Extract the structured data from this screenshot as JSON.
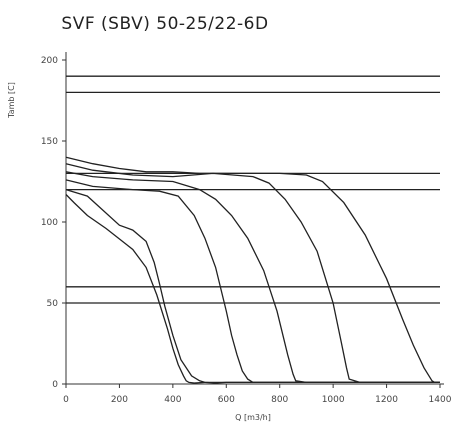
{
  "chart_data": {
    "type": "line",
    "title": "SVF (SBV) 50-25/22-6D",
    "xlabel": "Q [m3/h]",
    "ylabel": "Tamb [C]",
    "xlim": [
      0,
      1400
    ],
    "ylim": [
      0,
      200
    ],
    "xticks": [
      "0",
      "200",
      "400",
      "600",
      "800",
      "1000",
      "1200",
      "1400"
    ],
    "yticks": [
      "0",
      "50",
      "100",
      "150",
      "200"
    ],
    "horizontal_lines": [
      190,
      180,
      130,
      120,
      60,
      50
    ],
    "series": [
      {
        "x": [
          0,
          30,
          80,
          150,
          250,
          300,
          340,
          380,
          400,
          420,
          440,
          450,
          460,
          480,
          520,
          1400
        ],
        "y": [
          117,
          112,
          104,
          96,
          83,
          72,
          55,
          34,
          22,
          12,
          5,
          2,
          1,
          0.6,
          1,
          1
        ]
      },
      {
        "x": [
          0,
          80,
          200,
          250,
          300,
          330,
          350,
          370,
          400,
          430,
          470,
          500,
          520,
          560,
          600,
          1400
        ],
        "y": [
          120,
          116,
          98,
          95,
          88,
          75,
          62,
          48,
          30,
          15,
          5,
          2,
          1,
          0.6,
          1,
          1
        ]
      },
      {
        "x": [
          0,
          100,
          250,
          350,
          420,
          480,
          520,
          560,
          600,
          620,
          640,
          660,
          680,
          700,
          720,
          1400
        ],
        "y": [
          126,
          122,
          120,
          119,
          116,
          104,
          90,
          72,
          45,
          30,
          18,
          8,
          3,
          1,
          1,
          1
        ]
      },
      {
        "x": [
          0,
          100,
          250,
          400,
          500,
          560,
          620,
          680,
          740,
          790,
          830,
          850,
          860,
          900,
          940,
          1400
        ],
        "y": [
          131,
          128,
          126,
          125,
          120,
          114,
          104,
          90,
          70,
          45,
          18,
          6,
          2,
          1,
          1,
          1
        ]
      },
      {
        "x": [
          0,
          100,
          250,
          400,
          550,
          700,
          760,
          820,
          880,
          940,
          1000,
          1030,
          1050,
          1060,
          1100,
          1400
        ],
        "y": [
          136,
          132,
          129,
          128,
          130,
          128,
          124,
          114,
          100,
          82,
          50,
          26,
          10,
          3,
          1,
          1
        ]
      },
      {
        "x": [
          0,
          100,
          200,
          300,
          400,
          500,
          600,
          700,
          800,
          900,
          960,
          1040,
          1120,
          1200,
          1260,
          1300,
          1340,
          1370,
          1380,
          1400
        ],
        "y": [
          140,
          136,
          133,
          131,
          131,
          130,
          130,
          130,
          130,
          129,
          125,
          112,
          92,
          65,
          40,
          24,
          10,
          2,
          1,
          1
        ]
      }
    ]
  }
}
